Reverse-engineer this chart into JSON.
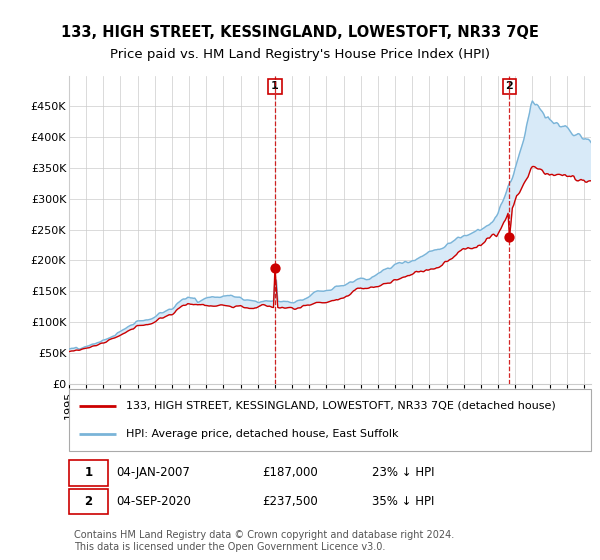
{
  "title": "133, HIGH STREET, KESSINGLAND, LOWESTOFT, NR33 7QE",
  "subtitle": "Price paid vs. HM Land Registry's House Price Index (HPI)",
  "ylim": [
    0,
    500000
  ],
  "yticks": [
    0,
    50000,
    100000,
    150000,
    200000,
    250000,
    300000,
    350000,
    400000,
    450000
  ],
  "ytick_labels": [
    "£0",
    "£50K",
    "£100K",
    "£150K",
    "£200K",
    "£250K",
    "£300K",
    "£350K",
    "£400K",
    "£450K"
  ],
  "hpi_color": "#7ab4d8",
  "price_color": "#cc0000",
  "fill_color": "#d8eaf8",
  "background_color": "#ffffff",
  "grid_color": "#cccccc",
  "sale1_month_idx": 144,
  "sale1_value": 187000,
  "sale2_month_idx": 308,
  "sale2_value": 237500,
  "legend_line1": "133, HIGH STREET, KESSINGLAND, LOWESTOFT, NR33 7QE (detached house)",
  "legend_line2": "HPI: Average price, detached house, East Suffolk",
  "footnote": "Contains HM Land Registry data © Crown copyright and database right 2024.\nThis data is licensed under the Open Government Licence v3.0.",
  "title_fontsize": 10.5,
  "subtitle_fontsize": 9.5,
  "tick_fontsize": 8,
  "legend_fontsize": 8,
  "annotation_fontsize": 8.5,
  "footnote_fontsize": 7,
  "n_months": 366,
  "start_year": 1995,
  "end_year": 2025
}
